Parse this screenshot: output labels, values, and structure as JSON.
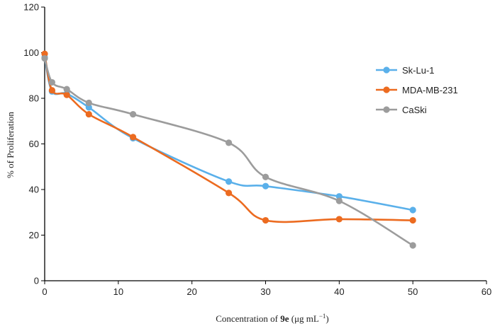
{
  "chart_data": {
    "type": "line",
    "title": "",
    "xlabel_parts": {
      "prefix": "Concentration of ",
      "bold": "9e",
      "suffix": " (μg mL",
      "superscript": "−1",
      "close": ")"
    },
    "ylabel": "% of Proliferation",
    "xlim": [
      0,
      60
    ],
    "ylim": [
      0,
      120
    ],
    "x_ticks": [
      "0",
      "10",
      "20",
      "30",
      "40",
      "50",
      "60"
    ],
    "y_ticks": [
      "0",
      "20",
      "40",
      "60",
      "80",
      "100",
      "120"
    ],
    "x_tick_values": [
      0,
      10,
      20,
      30,
      40,
      50,
      60
    ],
    "y_tick_values": [
      0,
      20,
      40,
      60,
      80,
      100,
      120
    ],
    "grid": false,
    "legend_position": "right",
    "series": [
      {
        "name": "Sk-Lu-1",
        "color": "#5ab0ea",
        "x": [
          0,
          1,
          3,
          6,
          12,
          25,
          30,
          40,
          50
        ],
        "values": [
          98,
          83,
          82,
          76,
          62.5,
          43.5,
          41.5,
          37,
          31
        ]
      },
      {
        "name": "MDA-MB-231",
        "color": "#ec6b20",
        "x": [
          0,
          1,
          3,
          6,
          12,
          25,
          30,
          40,
          50
        ],
        "values": [
          99.5,
          83.5,
          81.5,
          73,
          63,
          38.5,
          26.5,
          27,
          26.5
        ]
      },
      {
        "name": "CaSki",
        "color": "#9c9c9c",
        "x": [
          0,
          1,
          3,
          6,
          12,
          25,
          30,
          40,
          50
        ],
        "values": [
          97.5,
          87,
          84,
          78,
          73,
          60.5,
          45.5,
          35,
          15.5
        ]
      }
    ]
  }
}
